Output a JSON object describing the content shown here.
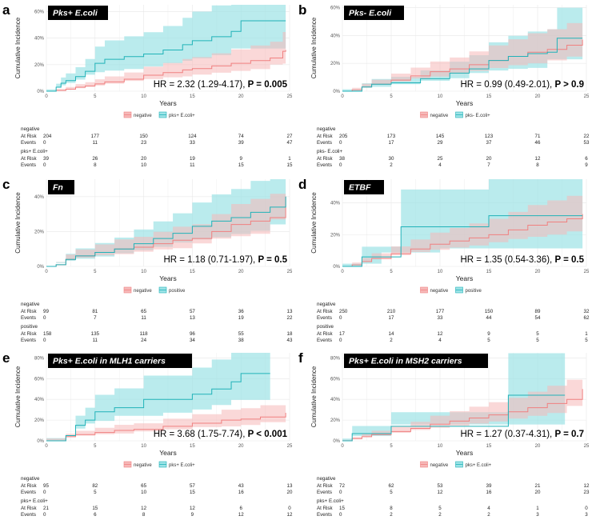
{
  "colors": {
    "negative": "#f08080",
    "negative_fill": "#f6b8b8",
    "positive": "#20b2b8",
    "positive_fill": "#9de3e6",
    "overlap_fill": "#b0b0b0"
  },
  "common": {
    "xlabel": "Years",
    "ylabel": "Cumulative Incidence",
    "at_risk_label": "At Risk",
    "events_label": "Events",
    "x_ticks": [
      0,
      5,
      10,
      15,
      20,
      25
    ]
  },
  "chart_data": [
    {
      "type": "line",
      "letter": "a",
      "title": "Pks+ E.coli",
      "hr_text": "HR = 2.32 (1.29-4.17), ",
      "p_text": "P = 0.005",
      "ylim": [
        0,
        0.65
      ],
      "y_ticks": [
        0,
        0.2,
        0.4,
        0.6
      ],
      "y_tick_labels": [
        "0%",
        "20%",
        "40%",
        "60%"
      ],
      "legend": [
        "negative",
        "pks+ E.coli+"
      ],
      "risk_groups": [
        {
          "label": "negative",
          "at_risk": [
            "204",
            "177",
            "150",
            "124",
            "74",
            "27"
          ],
          "events": [
            "0",
            "11",
            "23",
            "33",
            "39",
            "47"
          ]
        },
        {
          "label": "pks+ E.coli+",
          "at_risk": [
            "39",
            "26",
            "20",
            "19",
            "9",
            "1"
          ],
          "events": [
            "0",
            "8",
            "10",
            "11",
            "15",
            "15"
          ]
        }
      ],
      "series": [
        {
          "name": "negative",
          "x": [
            0,
            1,
            2,
            3,
            4,
            5,
            6,
            8,
            10,
            12,
            14,
            15,
            17,
            19,
            21,
            23,
            24.3,
            24.6
          ],
          "y": [
            0,
            0.005,
            0.015,
            0.03,
            0.04,
            0.055,
            0.07,
            0.09,
            0.12,
            0.14,
            0.16,
            0.17,
            0.19,
            0.21,
            0.23,
            0.25,
            0.3,
            0.31
          ]
        },
        {
          "name": "pks+ E.coli+",
          "x": [
            0,
            1,
            1.5,
            2,
            3,
            4,
            5,
            6,
            8,
            10,
            12,
            14,
            15,
            17,
            19,
            20,
            21,
            24.6
          ],
          "y": [
            0,
            0.03,
            0.06,
            0.08,
            0.11,
            0.15,
            0.21,
            0.24,
            0.26,
            0.28,
            0.31,
            0.35,
            0.38,
            0.41,
            0.45,
            0.53,
            0.53,
            0.53
          ]
        }
      ]
    },
    {
      "type": "line",
      "letter": "b",
      "title": "Pks- E.coli",
      "hr_text": "HR = 0.99 (0.49-2.01), ",
      "p_text": "P > 0.9",
      "ylim": [
        0,
        0.62
      ],
      "y_ticks": [
        0,
        0.2,
        0.4,
        0.6
      ],
      "y_tick_labels": [
        "0%",
        "20%",
        "40%",
        "60%"
      ],
      "legend": [
        "negative",
        "pks- E.coli+"
      ],
      "risk_groups": [
        {
          "label": "negative",
          "at_risk": [
            "205",
            "173",
            "145",
            "123",
            "71",
            "22"
          ],
          "events": [
            "0",
            "17",
            "29",
            "37",
            "46",
            "53"
          ]
        },
        {
          "label": "pks- E.coli+",
          "at_risk": [
            "38",
            "30",
            "25",
            "20",
            "12",
            "6"
          ],
          "events": [
            "0",
            "2",
            "4",
            "7",
            "8",
            "9"
          ]
        }
      ],
      "series": [
        {
          "name": "negative",
          "x": [
            0,
            1,
            2,
            3,
            5,
            7,
            9,
            11,
            13,
            15,
            17,
            19,
            21,
            23,
            24.6
          ],
          "y": [
            0,
            0.01,
            0.03,
            0.05,
            0.08,
            0.11,
            0.14,
            0.16,
            0.19,
            0.22,
            0.25,
            0.28,
            0.3,
            0.33,
            0.37
          ]
        },
        {
          "name": "pks- E.coli+",
          "x": [
            0,
            2,
            3,
            5,
            8,
            11,
            13,
            15,
            17,
            19,
            21,
            22,
            23,
            24.6
          ],
          "y": [
            0,
            0.03,
            0.05,
            0.06,
            0.09,
            0.13,
            0.16,
            0.22,
            0.25,
            0.27,
            0.28,
            0.38,
            0.38,
            0.38
          ]
        }
      ]
    },
    {
      "type": "line",
      "letter": "c",
      "title": "Fn",
      "hr_text": "HR = 1.18 (0.71-1.97), ",
      "p_text": "P = 0.5",
      "ylim": [
        0,
        0.5
      ],
      "y_ticks": [
        0,
        0.2,
        0.4
      ],
      "y_tick_labels": [
        "0%",
        "20%",
        "40%"
      ],
      "legend": [
        "negative",
        "positive"
      ],
      "risk_groups": [
        {
          "label": "negative",
          "at_risk": [
            "99",
            "81",
            "65",
            "57",
            "36",
            "13"
          ],
          "events": [
            "0",
            "7",
            "11",
            "13",
            "19",
            "22"
          ]
        },
        {
          "label": "positive",
          "at_risk": [
            "158",
            "135",
            "118",
            "96",
            "55",
            "18"
          ],
          "events": [
            "0",
            "11",
            "24",
            "34",
            "38",
            "43"
          ]
        }
      ],
      "series": [
        {
          "name": "negative",
          "x": [
            0,
            1,
            2,
            3,
            5,
            7,
            9,
            11,
            13,
            15,
            17,
            19,
            21,
            23,
            24.6
          ],
          "y": [
            0,
            0.01,
            0.04,
            0.06,
            0.08,
            0.1,
            0.11,
            0.13,
            0.15,
            0.16,
            0.2,
            0.24,
            0.26,
            0.28,
            0.4
          ]
        },
        {
          "name": "positive",
          "x": [
            0,
            1,
            2,
            3,
            5,
            7,
            9,
            11,
            13,
            15,
            17,
            19,
            21,
            23,
            24.6
          ],
          "y": [
            0,
            0.01,
            0.04,
            0.06,
            0.08,
            0.1,
            0.13,
            0.16,
            0.19,
            0.23,
            0.26,
            0.28,
            0.31,
            0.34,
            0.4
          ]
        }
      ]
    },
    {
      "type": "line",
      "letter": "d",
      "title": "ETBF",
      "hr_text": "HR = 1.35 (0.54-3.36), ",
      "p_text": "P = 0.5",
      "ylim": [
        0,
        0.55
      ],
      "y_ticks": [
        0,
        0.2,
        0.4
      ],
      "y_tick_labels": [
        "0%",
        "20%",
        "40%"
      ],
      "legend": [
        "negative",
        "positive"
      ],
      "risk_groups": [
        {
          "label": "negative",
          "at_risk": [
            "250",
            "210",
            "177",
            "150",
            "89",
            "32"
          ],
          "events": [
            "0",
            "17",
            "33",
            "44",
            "54",
            "62"
          ]
        },
        {
          "label": "positive",
          "at_risk": [
            "17",
            "14",
            "12",
            "9",
            "5",
            "1"
          ],
          "events": [
            "0",
            "2",
            "4",
            "5",
            "5",
            "5"
          ]
        }
      ],
      "series": [
        {
          "name": "negative",
          "x": [
            0,
            1,
            2,
            3,
            5,
            7,
            9,
            11,
            13,
            15,
            17,
            19,
            21,
            23,
            24.6
          ],
          "y": [
            0,
            0.01,
            0.03,
            0.05,
            0.08,
            0.11,
            0.14,
            0.16,
            0.18,
            0.2,
            0.23,
            0.26,
            0.28,
            0.3,
            0.33
          ]
        },
        {
          "name": "positive",
          "x": [
            0,
            2,
            4,
            6,
            10,
            15,
            24.6
          ],
          "y": [
            0,
            0.06,
            0.06,
            0.25,
            0.25,
            0.32,
            0.32
          ]
        }
      ]
    },
    {
      "type": "line",
      "letter": "e",
      "title": "Pks+ E.coli in MLH1 carriers",
      "hr_text": "HR = 3.68 (1.75-7.74), ",
      "p_text": "P < 0.001",
      "ylim": [
        0,
        0.85
      ],
      "y_ticks": [
        0,
        0.2,
        0.4,
        0.6,
        0.8
      ],
      "y_tick_labels": [
        "0%",
        "20%",
        "40%",
        "60%",
        "80%"
      ],
      "legend": [
        "negative",
        "pks+ E.coli+"
      ],
      "risk_groups": [
        {
          "label": "negative",
          "at_risk": [
            "95",
            "82",
            "65",
            "57",
            "43",
            "13"
          ],
          "events": [
            "0",
            "5",
            "10",
            "15",
            "16",
            "20"
          ]
        },
        {
          "label": "pks+ E.coli+",
          "at_risk": [
            "21",
            "15",
            "12",
            "12",
            "6",
            "0"
          ],
          "events": [
            "0",
            "6",
            "8",
            "9",
            "12",
            "12"
          ]
        }
      ],
      "series": [
        {
          "name": "negative",
          "x": [
            0,
            2,
            3,
            5,
            7,
            9,
            12,
            15,
            18,
            20,
            22,
            24.6
          ],
          "y": [
            0,
            0.04,
            0.06,
            0.08,
            0.1,
            0.11,
            0.14,
            0.17,
            0.2,
            0.21,
            0.23,
            0.27
          ]
        },
        {
          "name": "pks+ E.coli+",
          "x": [
            0,
            2,
            3,
            4,
            5,
            7,
            10,
            12,
            15,
            17,
            19,
            20,
            23
          ],
          "y": [
            0,
            0.05,
            0.15,
            0.2,
            0.28,
            0.32,
            0.4,
            0.4,
            0.45,
            0.5,
            0.57,
            0.65,
            0.65
          ]
        }
      ]
    },
    {
      "type": "line",
      "letter": "f",
      "title": "Pks+ E.coli in MSH2 carriers",
      "hr_text": "HR = 1.27 (0.37-4.31), ",
      "p_text": "P = 0.7",
      "ylim": [
        0,
        0.85
      ],
      "y_ticks": [
        0,
        0.2,
        0.4,
        0.6,
        0.8
      ],
      "y_tick_labels": [
        "0%",
        "20%",
        "40%",
        "60%",
        "80%"
      ],
      "legend": [
        "negative",
        "pks+ E.coli+"
      ],
      "risk_groups": [
        {
          "label": "negative",
          "at_risk": [
            "72",
            "62",
            "53",
            "39",
            "21",
            "12"
          ],
          "events": [
            "0",
            "5",
            "12",
            "16",
            "20",
            "23"
          ]
        },
        {
          "label": "pks+ E.coli+",
          "at_risk": [
            "15",
            "8",
            "5",
            "4",
            "1",
            "0"
          ],
          "events": [
            "0",
            "2",
            "2",
            "2",
            "3",
            "3"
          ]
        }
      ],
      "series": [
        {
          "name": "negative",
          "x": [
            0,
            1,
            2,
            3,
            5,
            7,
            9,
            11,
            13,
            15,
            17,
            19,
            21,
            23,
            24.6
          ],
          "y": [
            0,
            0.02,
            0.04,
            0.06,
            0.09,
            0.12,
            0.16,
            0.19,
            0.22,
            0.25,
            0.28,
            0.32,
            0.36,
            0.4,
            0.5
          ]
        },
        {
          "name": "pks+ E.coli+",
          "x": [
            0,
            1,
            5,
            17,
            22.8
          ],
          "y": [
            0,
            0.07,
            0.14,
            0.44,
            0.44
          ]
        }
      ]
    }
  ]
}
